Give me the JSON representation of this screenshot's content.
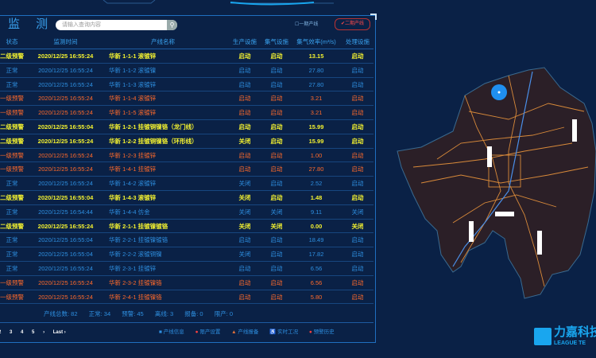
{
  "header": {
    "title": "监 测",
    "search_placeholder": "请输入查询内容",
    "phase1_label": "一期产线",
    "phase2_label": "二期产线"
  },
  "columns": [
    "状态",
    "监测时间",
    "产线名称",
    "生产设施",
    "集气设施",
    "集气效率(m³/s)",
    "处理设施"
  ],
  "rows": [
    {
      "level": "yellow",
      "status": "二级预警",
      "time": "2020/12/25 16:55:24",
      "name": "华新 1-1-1 滚镀锌",
      "prod": "启动",
      "gas": "启动",
      "eff": "13.15",
      "treat": "启动"
    },
    {
      "level": "blue",
      "status": "正常",
      "time": "2020/12/25 16:55:24",
      "name": "华新 1-1-2 滚镀镍",
      "prod": "启动",
      "gas": "启动",
      "eff": "27.80",
      "treat": "启动"
    },
    {
      "level": "blue",
      "status": "正常",
      "time": "2020/12/25 16:55:24",
      "name": "华新 1-1-3 滚镀锌",
      "prod": "启动",
      "gas": "启动",
      "eff": "27.80",
      "treat": "启动"
    },
    {
      "level": "red",
      "status": "一级预警",
      "time": "2020/12/25 16:55:24",
      "name": "华新 1-1-4 滚镀锌",
      "prod": "启动",
      "gas": "启动",
      "eff": "3.21",
      "treat": "启动"
    },
    {
      "level": "red",
      "status": "一级预警",
      "time": "2020/12/25 16:55:24",
      "name": "华新 1-1-5 滚镀锌",
      "prod": "启动",
      "gas": "启动",
      "eff": "3.21",
      "treat": "启动"
    },
    {
      "level": "yellow",
      "status": "二级预警",
      "time": "2020/12/25 16:55:04",
      "name": "华新 1-2-1 挂镀铜镍铬（龙门线）",
      "prod": "启动",
      "gas": "启动",
      "eff": "15.99",
      "treat": "启动"
    },
    {
      "level": "yellow",
      "status": "二级预警",
      "time": "2020/12/25 16:55:24",
      "name": "华新 1-2-2 挂镀铜镍铬（环形线）",
      "prod": "关闭",
      "gas": "启动",
      "eff": "15.99",
      "treat": "启动"
    },
    {
      "level": "red",
      "status": "一级预警",
      "time": "2020/12/25 16:55:24",
      "name": "华新 1-2-3 挂镀锌",
      "prod": "启动",
      "gas": "启动",
      "eff": "1.00",
      "treat": "启动"
    },
    {
      "level": "red",
      "status": "一级预警",
      "time": "2020/12/25 16:55:24",
      "name": "华新 1-4-1 挂镀锌",
      "prod": "启动",
      "gas": "启动",
      "eff": "27.80",
      "treat": "启动"
    },
    {
      "level": "blue",
      "status": "正常",
      "time": "2020/12/25 16:55:24",
      "name": "华新 1-4-2 滚镀锌",
      "prod": "关闭",
      "gas": "启动",
      "eff": "2.52",
      "treat": "启动"
    },
    {
      "level": "yellow",
      "status": "二级预警",
      "time": "2020/12/25 16:55:04",
      "name": "华新 1-4-3 滚镀锌",
      "prod": "关闭",
      "gas": "启动",
      "eff": "1.48",
      "treat": "启动"
    },
    {
      "level": "blue",
      "status": "正常",
      "time": "2020/12/25 16:54:44",
      "name": "华新 1-4-4 仿金",
      "prod": "关闭",
      "gas": "关闭",
      "eff": "9.11",
      "treat": "关闭"
    },
    {
      "level": "yellow",
      "status": "二级预警",
      "time": "2020/12/25 16:55:24",
      "name": "华新 2-1-1 挂镀镍镀铬",
      "prod": "关闭",
      "gas": "关闭",
      "eff": "0.00",
      "treat": "关闭"
    },
    {
      "level": "blue",
      "status": "正常",
      "time": "2020/12/25 16:55:04",
      "name": "华新 2-2-1 挂镀镍镀铬",
      "prod": "启动",
      "gas": "启动",
      "eff": "18.49",
      "treat": "启动"
    },
    {
      "level": "blue",
      "status": "正常",
      "time": "2020/12/25 16:55:04",
      "name": "华新 2-2-2 滚镀铜镍",
      "prod": "关闭",
      "gas": "启动",
      "eff": "17.82",
      "treat": "启动"
    },
    {
      "level": "blue",
      "status": "正常",
      "time": "2020/12/25 16:55:24",
      "name": "华新 2-3-1 挂镀锌",
      "prod": "启动",
      "gas": "启动",
      "eff": "6.56",
      "treat": "启动"
    },
    {
      "level": "red",
      "status": "一级预警",
      "time": "2020/12/25 16:55:24",
      "name": "华新 2-3-2 挂镀镍铬",
      "prod": "启动",
      "gas": "启动",
      "eff": "6.56",
      "treat": "启动"
    },
    {
      "level": "red",
      "status": "一级预警",
      "time": "2020/12/25 16:55:24",
      "name": "华新 2-4-1 挂镀镍铬",
      "prod": "启动",
      "gas": "启动",
      "eff": "5.80",
      "treat": "启动"
    }
  ],
  "summary": {
    "total": "产线总数: 82",
    "normal": "正常: 34",
    "warning": "预警: 45",
    "offline": "离线: 3",
    "report": "报备: 0",
    "stopped": "限产: 0"
  },
  "pager": {
    "pages": [
      "2",
      "3",
      "4",
      "5"
    ],
    "next": "›",
    "last": "Last ›"
  },
  "legend": [
    {
      "icon": "info-square-icon",
      "label": "产线信息",
      "color": "#2e8fe0"
    },
    {
      "icon": "stop-circle-icon",
      "label": "限产设置",
      "color": "#ff4040"
    },
    {
      "icon": "warning-triangle-icon",
      "label": "产线报备",
      "color": "#e0703a"
    },
    {
      "icon": "worker-icon",
      "label": "实时工况",
      "color": "#2ec0e0"
    },
    {
      "icon": "alarm-dot-icon",
      "label": "预警历史",
      "color": "#ff4040"
    }
  ],
  "logo": {
    "cn": "力嘉科技",
    "en": "LEAGUE TE"
  },
  "colors": {
    "background": "#0a2146",
    "yellow": "#f4f230",
    "red": "#ff6a2a",
    "blue": "#2e8fe0",
    "map_fill": "#2b1f27",
    "roads": "#d98a3a"
  }
}
